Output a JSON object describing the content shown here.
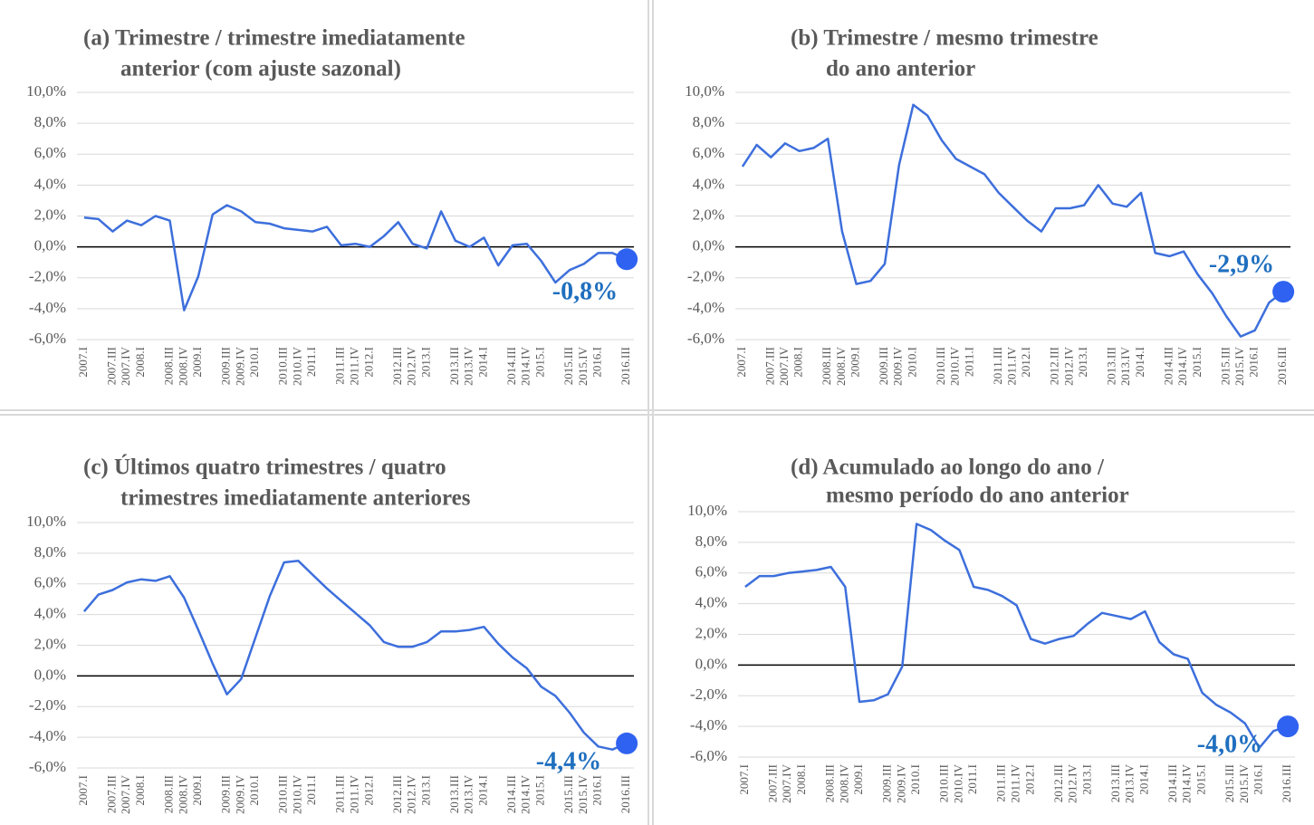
{
  "chart_data": [
    {
      "type": "line",
      "title": [
        "(a) Trimestre / trimestre imediatamente",
        "anterior (com ajuste sazonal)"
      ],
      "categories": [
        "2007.I",
        null,
        "2007.III",
        "2007.IV",
        "2008.I",
        null,
        "2008.III",
        "2008.IV",
        "2009.I",
        null,
        "2009.III",
        "2009.IV",
        "2010.I",
        null,
        "2010.III",
        "2010.IV",
        "2011.I",
        null,
        "2011.III",
        "2011.IV",
        "2012.I",
        null,
        "2012.III",
        "2012.IV",
        "2013.I",
        null,
        "2013.III",
        "2013.IV",
        "2014.I",
        null,
        "2014.III",
        "2014.IV",
        "2015.I",
        null,
        "2015.III",
        "2015.IV",
        "2016.I",
        null,
        "2016.III"
      ],
      "values": [
        1.9,
        1.8,
        1.0,
        1.7,
        1.4,
        2.0,
        1.7,
        -4.1,
        -1.9,
        2.1,
        2.7,
        2.3,
        1.6,
        1.5,
        1.2,
        1.1,
        1.0,
        1.3,
        0.1,
        0.2,
        0.0,
        0.7,
        1.6,
        0.2,
        -0.1,
        2.3,
        0.4,
        0.0,
        0.6,
        -1.2,
        0.1,
        0.2,
        -0.9,
        -2.3,
        -1.5,
        -1.1,
        -0.4,
        -0.4,
        -0.8
      ],
      "value_labels": [
        null,
        null,
        null,
        null,
        null,
        null,
        null,
        null,
        null,
        null,
        null,
        null,
        null,
        null,
        null,
        null,
        null,
        null,
        null,
        null,
        null,
        null,
        null,
        null,
        null,
        null,
        null,
        null,
        null,
        null,
        null,
        null,
        null,
        null,
        null,
        null,
        null,
        null,
        "-0,8%"
      ],
      "color": "#3d6fdc",
      "highlight_color": "#2f62f0",
      "ylim": [
        -6,
        10
      ],
      "yticks": [
        {
          "value": -6,
          "label": "-6,0%"
        },
        {
          "value": -4,
          "label": "-4,0%"
        },
        {
          "value": -2,
          "label": "-2,0%"
        },
        {
          "value": 0,
          "label": "0,0%"
        },
        {
          "value": 2,
          "label": "2,0%"
        },
        {
          "value": 4,
          "label": "4,0%"
        },
        {
          "value": 6,
          "label": "6,0%"
        },
        {
          "value": 8,
          "label": "8,0%"
        },
        {
          "value": 10,
          "label": "10,0%"
        }
      ],
      "grid": true
    },
    {
      "type": "line",
      "title": [
        "(b) Trimestre / mesmo trimestre",
        "do ano anterior"
      ],
      "categories": [
        "2007.I",
        null,
        "2007.III",
        "2007.IV",
        "2008.I",
        null,
        "2008.III",
        "2008.IV",
        "2009.I",
        null,
        "2009.III",
        "2009.IV",
        "2010.I",
        null,
        "2010.III",
        "2010.IV",
        "2011.I",
        null,
        "2011.III",
        "2011.IV",
        "2012.I",
        null,
        "2012.III",
        "2012.IV",
        "2013.I",
        null,
        "2013.III",
        "2013.IV",
        "2014.I",
        null,
        "2014.III",
        "2014.IV",
        "2015.I",
        null,
        "2015.III",
        "2015.IV",
        "2016.I",
        null,
        "2016.III"
      ],
      "values": [
        5.2,
        6.6,
        5.8,
        6.7,
        6.2,
        6.4,
        7.0,
        1.0,
        -2.4,
        -2.2,
        -1.1,
        5.3,
        9.2,
        8.5,
        6.9,
        5.7,
        5.2,
        4.7,
        3.5,
        2.6,
        1.7,
        1.0,
        2.5,
        2.5,
        2.7,
        4.0,
        2.8,
        2.6,
        3.5,
        -0.4,
        -0.6,
        -0.3,
        -1.8,
        -3.0,
        -4.5,
        -5.8,
        -5.4,
        -3.6,
        -2.9
      ],
      "value_labels": [
        null,
        null,
        null,
        null,
        null,
        null,
        null,
        null,
        null,
        null,
        null,
        null,
        null,
        null,
        null,
        null,
        null,
        null,
        null,
        null,
        null,
        null,
        null,
        null,
        null,
        null,
        null,
        null,
        null,
        null,
        null,
        null,
        null,
        null,
        null,
        null,
        null,
        null,
        "-2,9%"
      ],
      "color": "#3d6fdc",
      "highlight_color": "#2f62f0",
      "ylim": [
        -6,
        10
      ],
      "yticks": [
        {
          "value": -6,
          "label": "-6,0%"
        },
        {
          "value": -4,
          "label": "-4,0%"
        },
        {
          "value": -2,
          "label": "-2,0%"
        },
        {
          "value": 0,
          "label": "0,0%"
        },
        {
          "value": 2,
          "label": "2,0%"
        },
        {
          "value": 4,
          "label": "4,0%"
        },
        {
          "value": 6,
          "label": "6,0%"
        },
        {
          "value": 8,
          "label": "8,0%"
        },
        {
          "value": 10,
          "label": "10,0%"
        }
      ],
      "grid": true
    },
    {
      "type": "line",
      "title": [
        "(c) Últimos quatro trimestres / quatro",
        "trimestres imediatamente anteriores"
      ],
      "categories": [
        "2007.I",
        null,
        "2007.III",
        "2007.IV",
        "2008.I",
        null,
        "2008.III",
        "2008.IV",
        "2009.I",
        null,
        "2009.III",
        "2009.IV",
        "2010.I",
        null,
        "2010.III",
        "2010.IV",
        "2011.I",
        null,
        "2011.III",
        "2011.IV",
        "2012.I",
        null,
        "2012.III",
        "2012.IV",
        "2013.I",
        null,
        "2013.III",
        "2013.IV",
        "2014.I",
        null,
        "2014.III",
        "2014.IV",
        "2015.I",
        null,
        "2015.III",
        "2015.IV",
        "2016.I",
        null,
        "2016.III"
      ],
      "values": [
        4.2,
        5.3,
        5.6,
        6.1,
        6.3,
        6.2,
        6.5,
        5.1,
        3.0,
        0.8,
        -1.2,
        -0.2,
        2.5,
        5.2,
        7.4,
        7.5,
        6.6,
        5.7,
        4.9,
        4.1,
        3.3,
        2.2,
        1.9,
        1.9,
        2.2,
        2.9,
        2.9,
        3.0,
        3.2,
        2.1,
        1.2,
        0.5,
        -0.7,
        -1.3,
        -2.4,
        -3.7,
        -4.6,
        -4.8,
        -4.4
      ],
      "value_labels": [
        null,
        null,
        null,
        null,
        null,
        null,
        null,
        null,
        null,
        null,
        null,
        null,
        null,
        null,
        null,
        null,
        null,
        null,
        null,
        null,
        null,
        null,
        null,
        null,
        null,
        null,
        null,
        null,
        null,
        null,
        null,
        null,
        null,
        null,
        null,
        null,
        null,
        null,
        "-4,4%"
      ],
      "color": "#3d6fdc",
      "highlight_color": "#2f62f0",
      "ylim": [
        -6,
        10
      ],
      "yticks": [
        {
          "value": -6,
          "label": "-6,0%"
        },
        {
          "value": -4,
          "label": "-4,0%"
        },
        {
          "value": -2,
          "label": "-2,0%"
        },
        {
          "value": 0,
          "label": "0,0%"
        },
        {
          "value": 2,
          "label": "2,0%"
        },
        {
          "value": 4,
          "label": "4,0%"
        },
        {
          "value": 6,
          "label": "6,0%"
        },
        {
          "value": 8,
          "label": "8,0%"
        },
        {
          "value": 10,
          "label": "10,0%"
        }
      ],
      "grid": true
    },
    {
      "type": "line",
      "title": [
        "(d) Acumulado ao longo do ano /",
        "mesmo período do ano anterior"
      ],
      "categories": [
        "2007.I",
        null,
        "2007.III",
        "2007.IV",
        "2008.I",
        null,
        "2008.III",
        "2008.IV",
        "2009.I",
        null,
        "2009.III",
        "2009.IV",
        "2010.I",
        null,
        "2010.III",
        "2010.IV",
        "2011.I",
        null,
        "2011.III",
        "2011.IV",
        "2012.I",
        null,
        "2012.III",
        "2012.IV",
        "2013.I",
        null,
        "2013.III",
        "2013.IV",
        "2014.I",
        null,
        "2014.III",
        "2014.IV",
        "2015.I",
        null,
        "2015.III",
        "2015.IV",
        "2016.I",
        null,
        "2016.III"
      ],
      "values": [
        5.1,
        5.8,
        5.8,
        6.0,
        6.1,
        6.2,
        6.4,
        5.1,
        -2.4,
        -2.3,
        -1.9,
        -0.1,
        9.2,
        8.8,
        8.1,
        7.5,
        5.1,
        4.9,
        4.5,
        3.9,
        1.7,
        1.4,
        1.7,
        1.9,
        2.7,
        3.4,
        3.2,
        3.0,
        3.5,
        1.5,
        0.7,
        0.4,
        -1.8,
        -2.6,
        -3.1,
        -3.8,
        -5.4,
        -4.3,
        -4.0
      ],
      "value_labels": [
        null,
        null,
        null,
        null,
        null,
        null,
        null,
        null,
        null,
        null,
        null,
        null,
        null,
        null,
        null,
        null,
        null,
        null,
        null,
        null,
        null,
        null,
        null,
        null,
        null,
        null,
        null,
        null,
        null,
        null,
        null,
        null,
        null,
        null,
        null,
        null,
        null,
        null,
        "-4,0%"
      ],
      "color": "#3d6fdc",
      "highlight_color": "#2f62f0",
      "ylim": [
        -6,
        10
      ],
      "yticks": [
        {
          "value": -6,
          "label": "-6,0%"
        },
        {
          "value": -4,
          "label": "-4,0%"
        },
        {
          "value": -2,
          "label": "-2,0%"
        },
        {
          "value": 0,
          "label": "0,0%"
        },
        {
          "value": 2,
          "label": "2,0%"
        },
        {
          "value": 4,
          "label": "4,0%"
        },
        {
          "value": 6,
          "label": "6,0%"
        },
        {
          "value": 8,
          "label": "8,0%"
        },
        {
          "value": 10,
          "label": "10,0%"
        }
      ],
      "grid": true
    }
  ]
}
